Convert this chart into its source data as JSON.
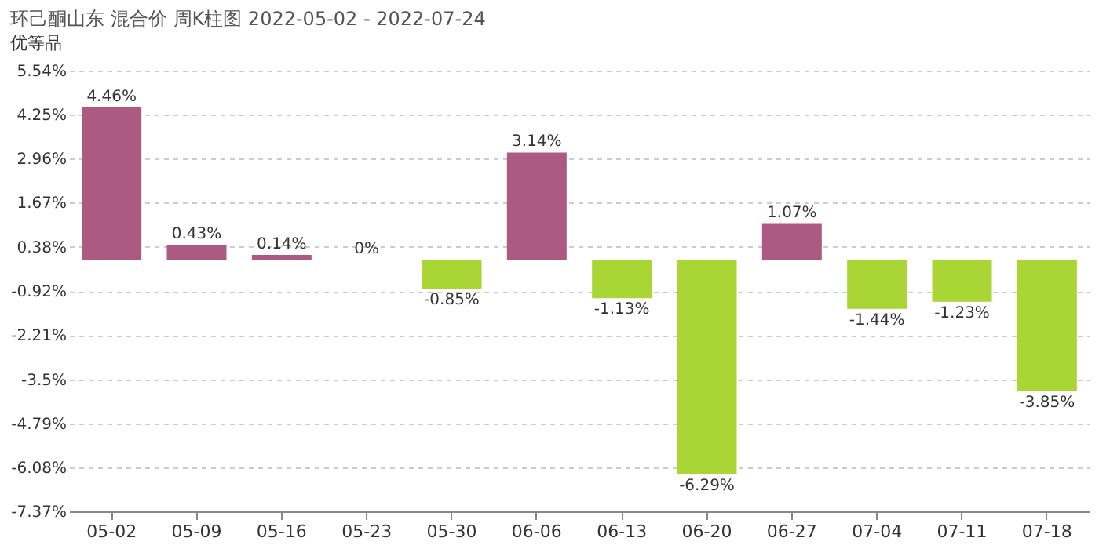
{
  "chart_data": {
    "type": "bar",
    "title": "环己酮山东 混合价 周K柱图 2022-05-02 - 2022-07-24",
    "subtitle": "优等品",
    "categories": [
      "05-02",
      "05-09",
      "05-16",
      "05-23",
      "05-30",
      "06-06",
      "06-13",
      "06-20",
      "06-27",
      "07-04",
      "07-11",
      "07-18"
    ],
    "values": [
      4.46,
      0.43,
      0.14,
      0,
      -0.85,
      3.14,
      -1.13,
      -6.29,
      1.07,
      -1.44,
      -1.23,
      -3.85
    ],
    "colors": [
      "#ad5a82",
      "#ad5a82",
      "#ad5a82",
      "#ad5a82",
      "#a9d535",
      "#ad5a82",
      "#a9d535",
      "#a9d535",
      "#ad5a82",
      "#a9d535",
      "#a9d535",
      "#a9d535"
    ],
    "value_labels": [
      "4.46%",
      "0.43%",
      "0.14%",
      "0%",
      "-0.85%",
      "3.14%",
      "-1.13%",
      "-6.29%",
      "1.07%",
      "-1.44%",
      "-1.23%",
      "-3.85%"
    ],
    "ylim": [
      -7.37,
      5.54
    ],
    "yticks": [
      {
        "value": 5.54,
        "label": "5.54%"
      },
      {
        "value": 4.25,
        "label": "4.25%"
      },
      {
        "value": 2.96,
        "label": "2.96%"
      },
      {
        "value": 1.67,
        "label": "1.67%"
      },
      {
        "value": 0.38,
        "label": "0.38%"
      },
      {
        "value": -0.92,
        "label": "-0.92%"
      },
      {
        "value": -2.21,
        "label": "-2.21%"
      },
      {
        "value": -3.5,
        "label": "-3.5%"
      },
      {
        "value": -4.79,
        "label": "-4.79%"
      },
      {
        "value": -6.08,
        "label": "-6.08%"
      },
      {
        "value": -7.37,
        "label": "-7.37%"
      }
    ],
    "grid": "y"
  }
}
